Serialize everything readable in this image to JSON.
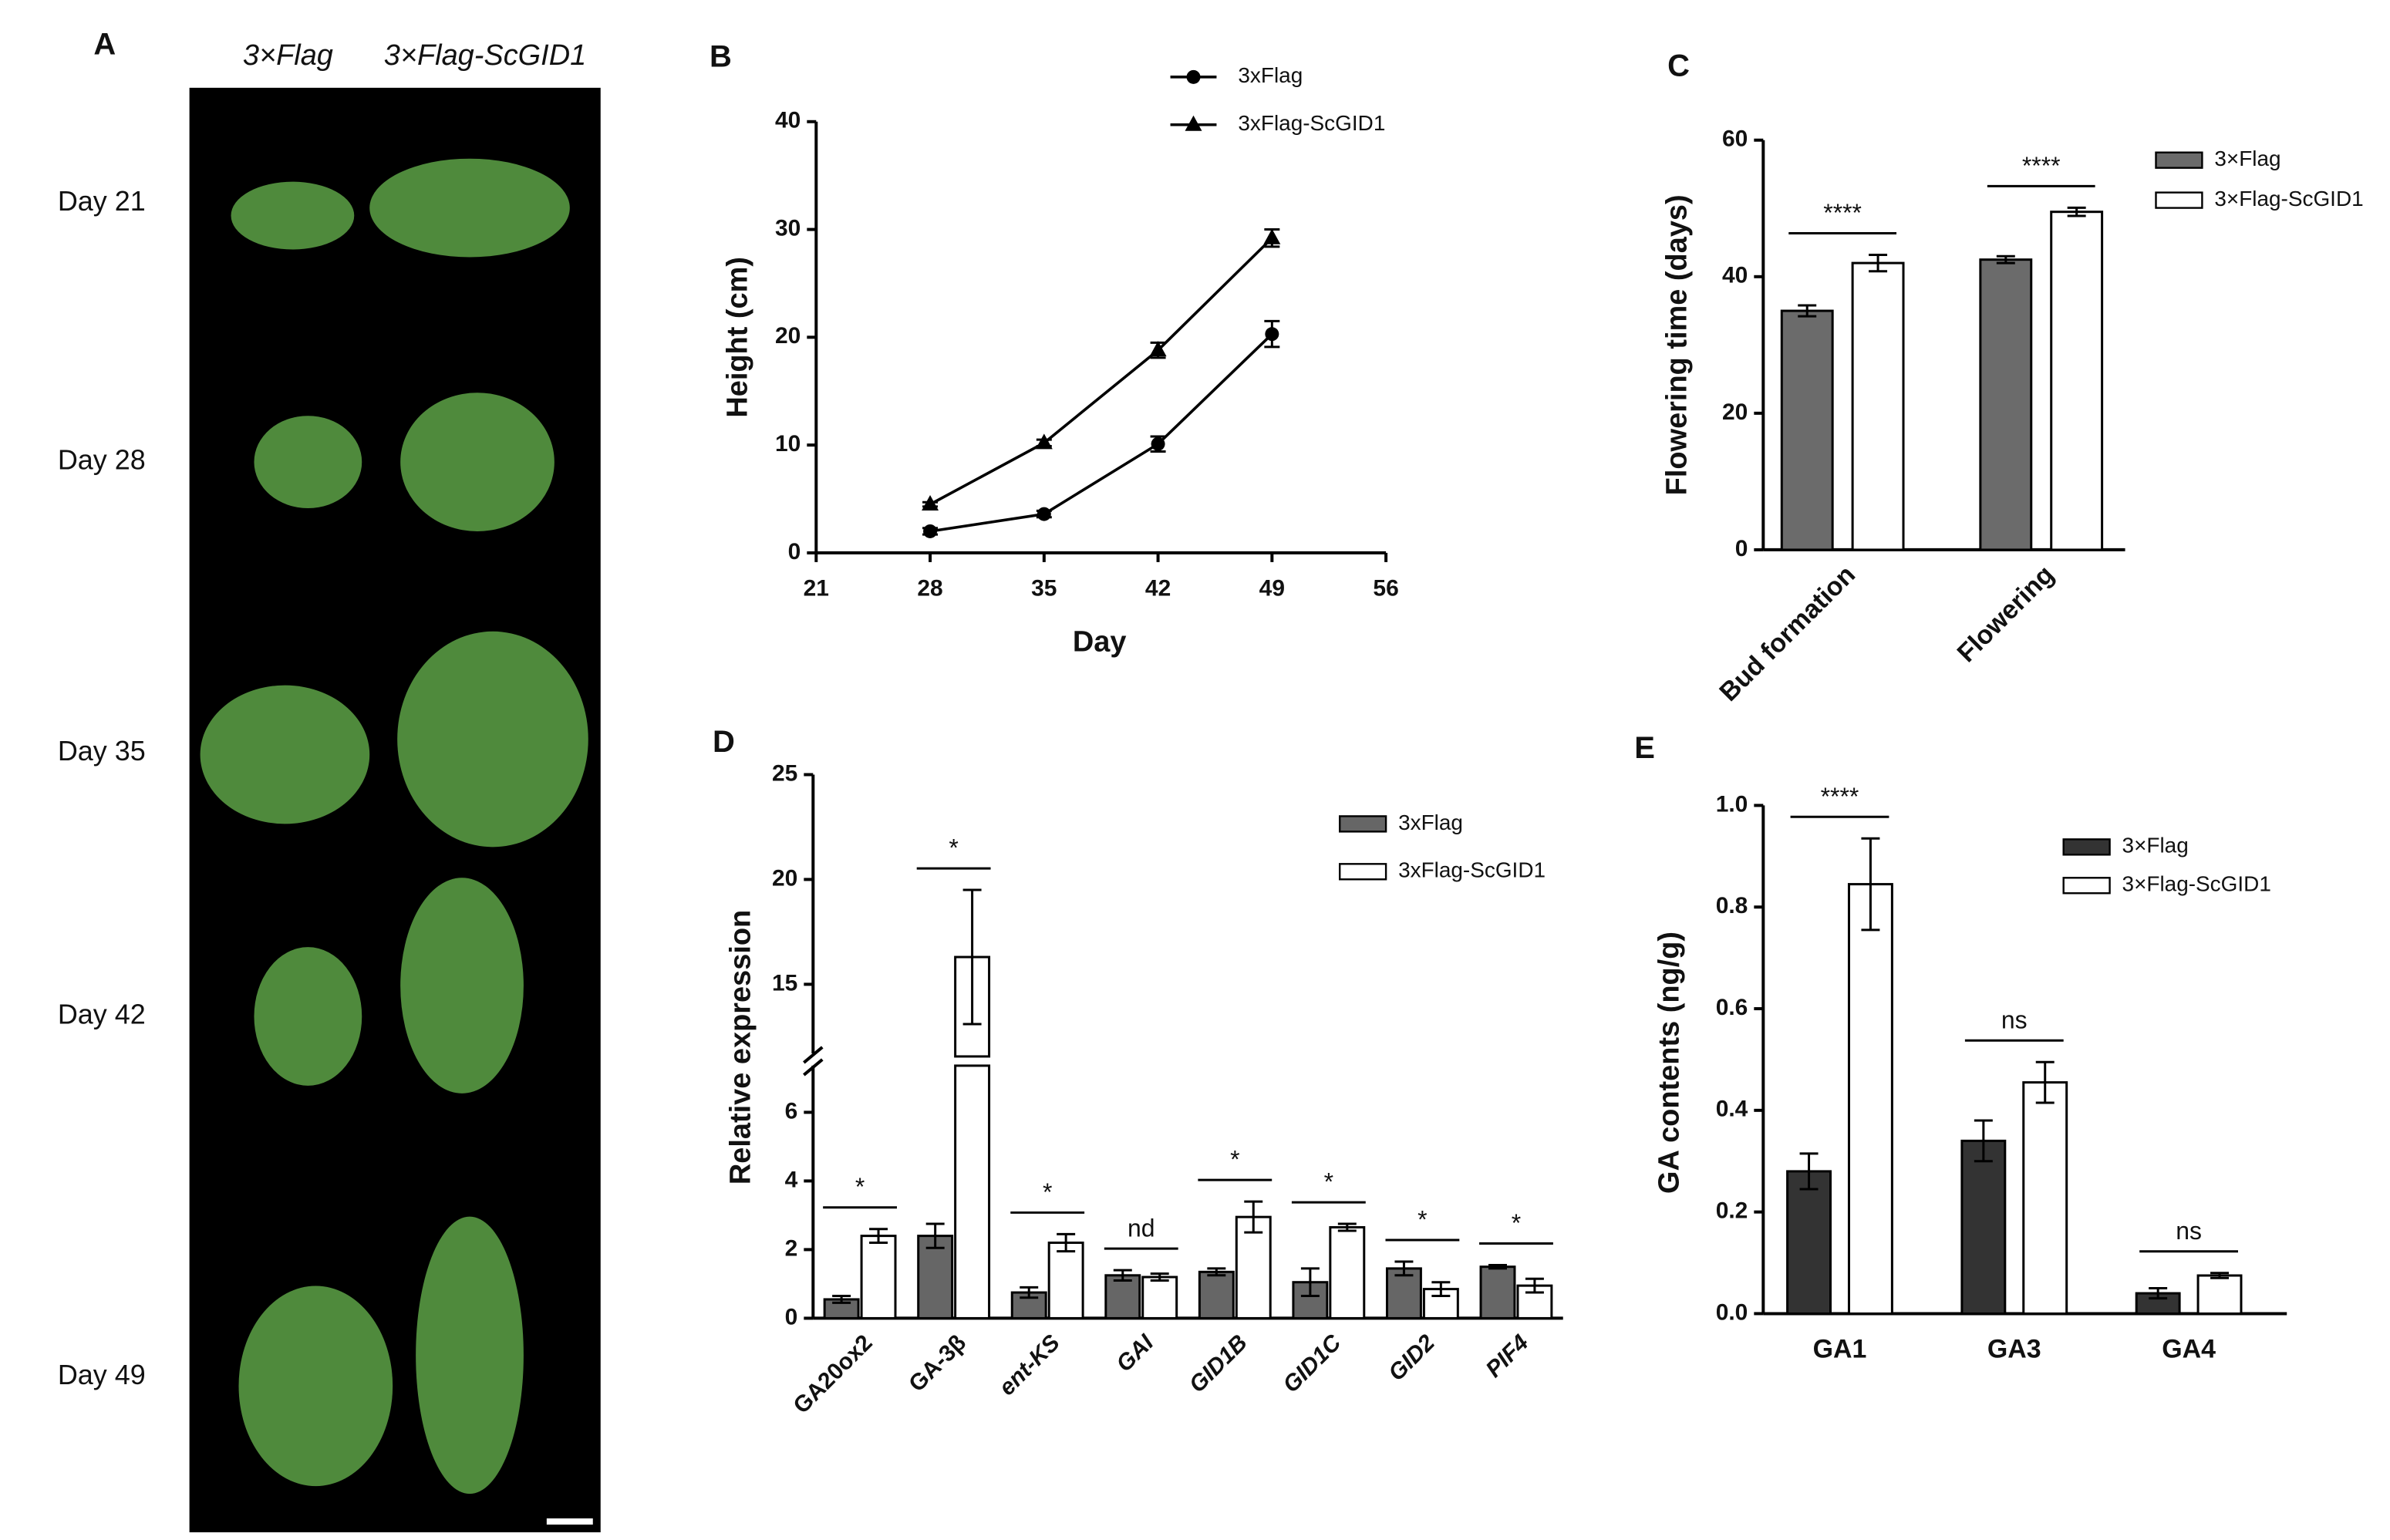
{
  "panel_a": {
    "panel": "A",
    "columns": [
      "3×Flag",
      "3×Flag-ScGID1"
    ],
    "rows": [
      "Day 21",
      "Day 28",
      "Day 35",
      "Day 42",
      "Day 49"
    ]
  },
  "chart_data": [
    {
      "type": "line",
      "panel": "B",
      "x_label": "Day",
      "y_label": "Height (cm)",
      "x": [
        28,
        35,
        42,
        49
      ],
      "xlim": [
        21,
        56
      ],
      "xticks": [
        21,
        28,
        35,
        42,
        49,
        56
      ],
      "ylim": [
        0,
        40
      ],
      "yticks": [
        0,
        10,
        20,
        30,
        40
      ],
      "series": [
        {
          "name": "3xFlag",
          "color": "#000000",
          "marker": "circle",
          "values": [
            2,
            3.6,
            10.1,
            20.3
          ],
          "errors": [
            0.3,
            0.3,
            0.7,
            1.2
          ]
        },
        {
          "name": "3xFlag-ScGID1",
          "color": "#000000",
          "marker": "triangle",
          "values": [
            4.5,
            10.2,
            18.8,
            29.2
          ],
          "errors": [
            0.2,
            0.3,
            0.7,
            0.8
          ]
        }
      ]
    },
    {
      "type": "bar",
      "panel": "C",
      "y_label": "Flowering time (days)",
      "categories": [
        "Bud formation",
        "Flowering"
      ],
      "ylim": [
        0,
        60
      ],
      "yticks": [
        0,
        20,
        40,
        60
      ],
      "annotations": [
        "****",
        "****"
      ],
      "series": [
        {
          "name": "3×Flag",
          "color": "#6b6b6b",
          "values": [
            35,
            42.5
          ],
          "errors": [
            0.8,
            0.5
          ]
        },
        {
          "name": "3×Flag-ScGID1",
          "color": "#ffffff",
          "values": [
            42,
            49.5
          ],
          "errors": [
            1.2,
            0.6
          ]
        }
      ]
    },
    {
      "type": "bar",
      "panel": "D",
      "y_label": "Relative expression",
      "categories": [
        "GA20ox2",
        "GA-3β",
        "ent-KS",
        "GAI",
        "GID1B",
        "GID1C",
        "GID2",
        "PIF4"
      ],
      "ylim": [
        0,
        25
      ],
      "ybreak": [
        7,
        12
      ],
      "yticks": [
        0,
        2,
        4,
        6,
        15,
        20,
        25
      ],
      "annotations": [
        "*",
        "*",
        "*",
        "nd",
        "*",
        "*",
        "*",
        "*"
      ],
      "series": [
        {
          "name": "3xFlag",
          "color": "#666666",
          "values": [
            0.55,
            2.4,
            0.75,
            1.25,
            1.35,
            1.05,
            1.45,
            1.5
          ],
          "errors": [
            0.1,
            0.35,
            0.15,
            0.15,
            0.1,
            0.4,
            0.2,
            0.05
          ]
        },
        {
          "name": "3xFlag-ScGID1",
          "color": "#ffffff",
          "values": [
            2.4,
            16.3,
            2.2,
            1.2,
            2.95,
            2.65,
            0.85,
            0.95
          ],
          "errors": [
            0.2,
            3.2,
            0.25,
            0.1,
            0.45,
            0.1,
            0.2,
            0.2
          ]
        }
      ]
    },
    {
      "type": "bar",
      "panel": "E",
      "y_label": "GA contents (ng/g)",
      "categories": [
        "GA1",
        "GA3",
        "GA4"
      ],
      "ylim": [
        0,
        1
      ],
      "yticks": [
        {
          "value": 0,
          "label": "0.0"
        },
        0.2,
        0.4,
        0.6,
        0.8,
        {
          "value": 1,
          "label": "1.0"
        }
      ],
      "annotations": [
        "****",
        "ns",
        "ns"
      ],
      "series": [
        {
          "name": "3×Flag",
          "color": "#333333",
          "values": [
            0.28,
            0.34,
            0.04
          ],
          "errors": [
            0.035,
            0.04,
            0.01
          ]
        },
        {
          "name": "3×Flag-ScGID1",
          "color": "#ffffff",
          "values": [
            0.845,
            0.455,
            0.075
          ],
          "errors": [
            0.09,
            0.04,
            0.005
          ]
        }
      ]
    }
  ]
}
